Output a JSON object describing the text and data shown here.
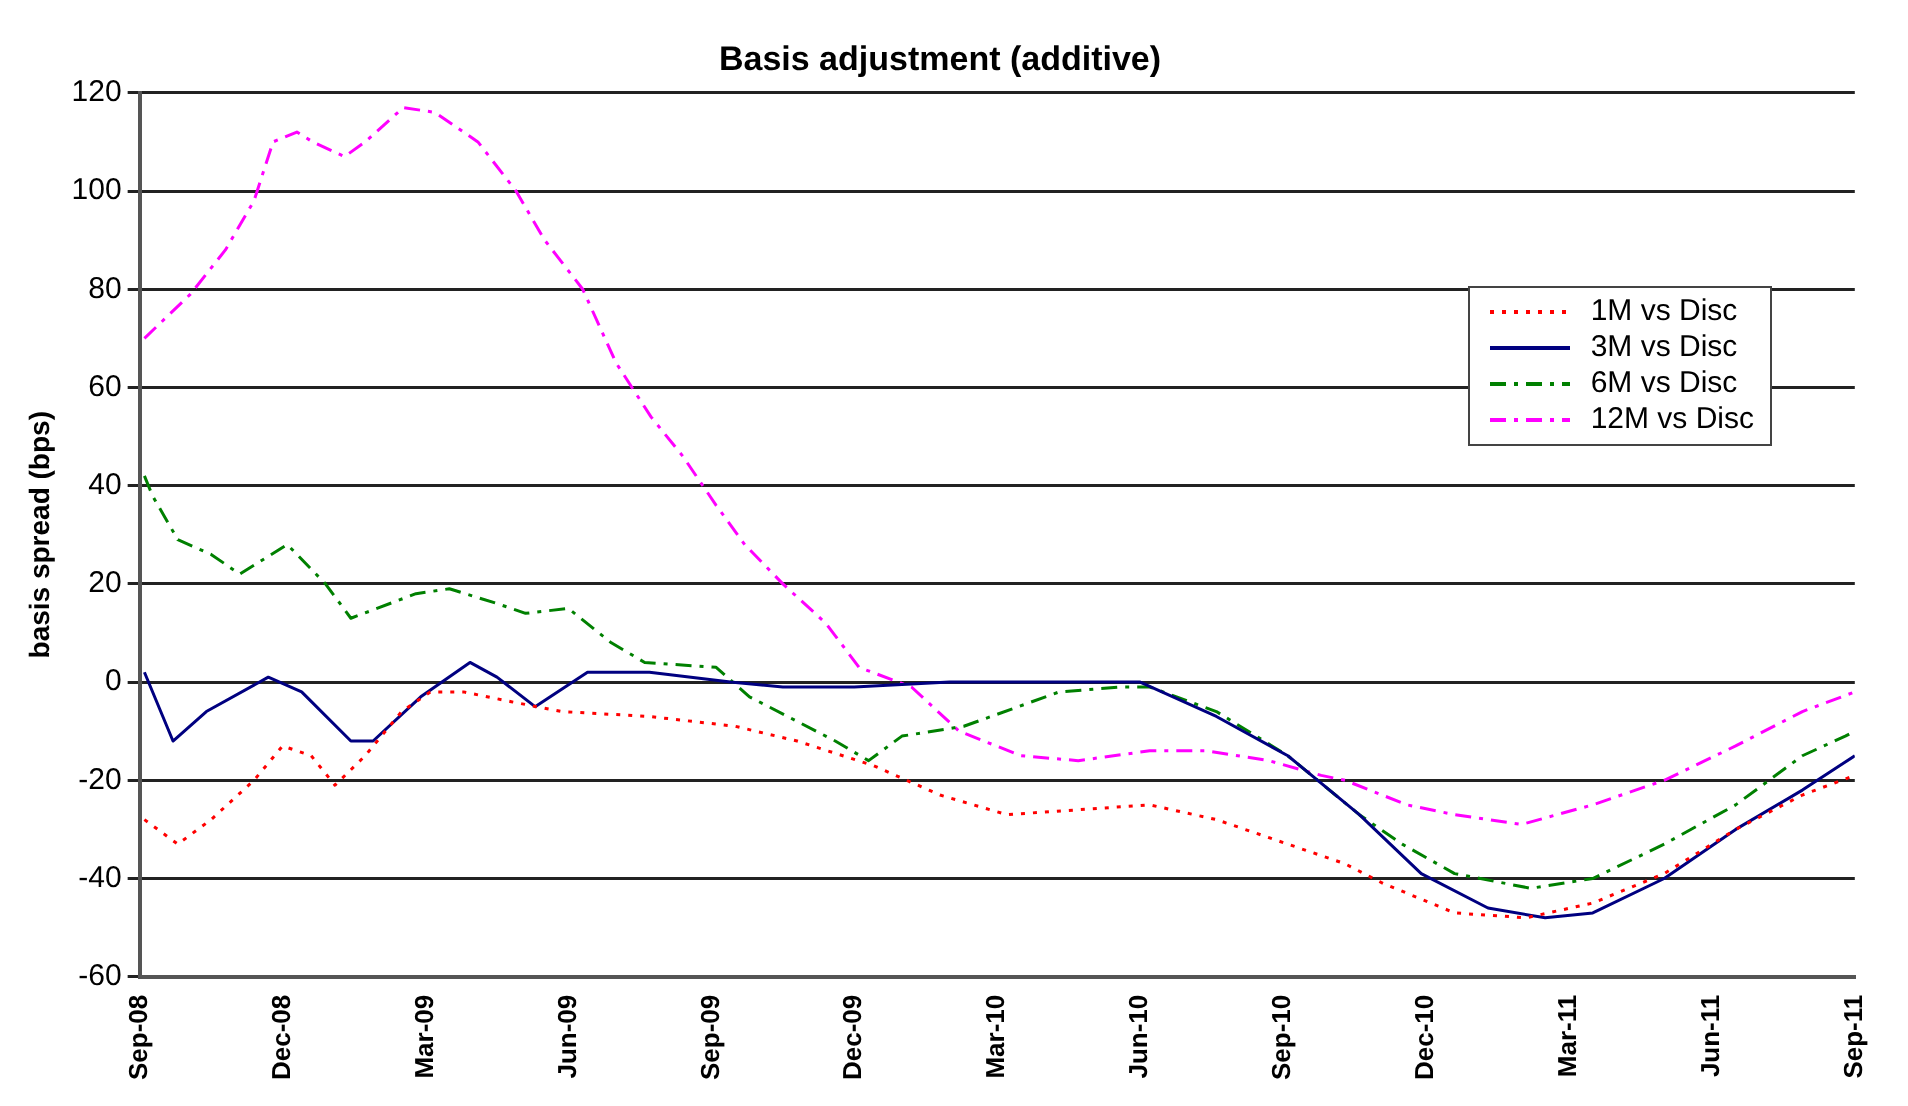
{
  "chart_data": {
    "type": "line",
    "title": "Basis adjustment (additive)",
    "ylabel": "basis spread (bps)",
    "xlim": [
      "2008-09",
      "2011-09"
    ],
    "xticks": [
      {
        "value": "2008-09",
        "label": "Sep-08"
      },
      {
        "value": "2008-12",
        "label": "Dec-08"
      },
      {
        "value": "2009-03",
        "label": "Mar-09"
      },
      {
        "value": "2009-06",
        "label": "Jun-09"
      },
      {
        "value": "2009-09",
        "label": "Sep-09"
      },
      {
        "value": "2009-12",
        "label": "Dec-09"
      },
      {
        "value": "2010-03",
        "label": "Mar-10"
      },
      {
        "value": "2010-06",
        "label": "Jun-10"
      },
      {
        "value": "2010-09",
        "label": "Sep-10"
      },
      {
        "value": "2010-12",
        "label": "Dec-10"
      },
      {
        "value": "2011-03",
        "label": "Mar-11"
      },
      {
        "value": "2011-06",
        "label": "Jun-11"
      },
      {
        "value": "2011-09",
        "label": "Sep-11"
      }
    ],
    "ylim": [
      -60,
      120
    ],
    "yticks": [
      -60,
      -40,
      -20,
      0,
      20,
      40,
      60,
      80,
      100,
      120
    ],
    "grid": "y",
    "legend": "top right",
    "marker": "none",
    "series": [
      {
        "name": "1M vs Disc",
        "color": "#ff0000",
        "line_style": "dotted",
        "x": [
          "2008-09-04",
          "2008-09-25",
          "2008-10-16",
          "2008-11-13",
          "2008-12-01",
          "2008-12-19",
          "2009-01-04",
          "2009-01-23",
          "2009-02-16",
          "2009-03-04",
          "2009-03-25",
          "2009-04-25",
          "2009-05-27",
          "2009-07-22",
          "2009-09-16",
          "2009-10-25",
          "2009-12-13",
          "2010-01-25",
          "2010-03-07",
          "2010-04-22",
          "2010-06-07",
          "2010-07-19",
          "2010-09-04",
          "2010-10-10",
          "2010-11-04",
          "2010-12-19",
          "2011-02-04",
          "2011-03-16",
          "2011-05-01",
          "2011-06-16",
          "2011-07-28",
          "2011-09-01"
        ],
        "values": [
          -28,
          -33,
          -28,
          -20,
          -13,
          -15,
          -21,
          -15,
          -6,
          -2,
          -2,
          -4,
          -6,
          -7,
          -9,
          -12,
          -17,
          -23,
          -27,
          -26,
          -25,
          -28,
          -33,
          -37,
          -41,
          -47,
          -48,
          -45,
          -39,
          -30,
          -23,
          -19
        ]
      },
      {
        "name": "3M vs Disc",
        "color": "#000080",
        "line_style": "solid",
        "x": [
          "2008-09-04",
          "2008-09-22",
          "2008-10-13",
          "2008-11-22",
          "2008-12-13",
          "2009-01-14",
          "2009-01-28",
          "2009-02-28",
          "2009-03-29",
          "2009-04-16",
          "2009-05-10",
          "2009-06-13",
          "2009-07-22",
          "2009-09-13",
          "2009-10-16",
          "2009-12-01",
          "2010-02-01",
          "2010-06-01",
          "2010-07-19",
          "2010-09-04",
          "2010-10-19",
          "2010-11-28",
          "2011-01-10",
          "2011-02-16",
          "2011-03-16",
          "2011-05-01",
          "2011-06-16",
          "2011-07-28",
          "2011-09-01"
        ],
        "values": [
          2,
          -12,
          -6,
          1,
          -2,
          -12,
          -12,
          -3,
          4,
          1,
          -5,
          2,
          2,
          0,
          -1,
          -1,
          0,
          0,
          -7,
          -15,
          -27,
          -39,
          -46,
          -48,
          -47,
          -40,
          -30,
          -22,
          -15
        ]
      },
      {
        "name": "6M vs Disc",
        "color": "#008000",
        "line_style": "dashed",
        "x": [
          "2008-09-04",
          "2008-09-09",
          "2008-09-25",
          "2008-10-16",
          "2008-11-04",
          "2008-12-04",
          "2008-12-28",
          "2009-01-14",
          "2009-02-25",
          "2009-03-16",
          "2009-04-16",
          "2009-05-04",
          "2009-06-01",
          "2009-06-28",
          "2009-07-19",
          "2009-09-04",
          "2009-09-25",
          "2009-11-19",
          "2009-12-10",
          "2010-01-01",
          "2010-02-10",
          "2010-04-10",
          "2010-05-19",
          "2010-06-07",
          "2010-07-19",
          "2010-09-04",
          "2010-10-19",
          "2010-11-16",
          "2010-12-19",
          "2011-02-07",
          "2011-03-16",
          "2011-05-01",
          "2011-06-16",
          "2011-07-28",
          "2011-08-25",
          "2011-09-01"
        ],
        "values": [
          42,
          38,
          29,
          26,
          22,
          28,
          20,
          13,
          18,
          19,
          16,
          14,
          15,
          8,
          4,
          3,
          -3,
          -12,
          -16,
          -11,
          -9,
          -2,
          -1,
          -1,
          -6,
          -15,
          -27,
          -33,
          -39,
          -42,
          -40,
          -33,
          -25,
          -15,
          -11,
          -10
        ]
      },
      {
        "name": "12M vs Disc",
        "color": "#ff00ff",
        "line_style": "dashed",
        "x": [
          "2008-09-04",
          "2008-10-03",
          "2008-10-25",
          "2008-11-13",
          "2008-11-25",
          "2008-12-10",
          "2008-12-20",
          "2009-01-10",
          "2009-01-23",
          "2009-02-17",
          "2009-03-07",
          "2009-04-04",
          "2009-04-28",
          "2009-05-16",
          "2009-06-10",
          "2009-07-01",
          "2009-07-23",
          "2009-08-13",
          "2009-09-04",
          "2009-09-22",
          "2009-10-16",
          "2009-11-13",
          "2009-12-04",
          "2010-01-07",
          "2010-02-07",
          "2010-03-16",
          "2010-04-22",
          "2010-06-07",
          "2010-07-13",
          "2010-08-22",
          "2010-09-25",
          "2010-10-10",
          "2010-11-19",
          "2010-12-19",
          "2011-02-01",
          "2011-03-16",
          "2011-05-01",
          "2011-06-16",
          "2011-07-28",
          "2011-09-01"
        ],
        "values": [
          70,
          79,
          88,
          98,
          110,
          112,
          110,
          107,
          110,
          117,
          116,
          110,
          100,
          90,
          80,
          65,
          54,
          46,
          36,
          28,
          20,
          12,
          3,
          -1,
          -10,
          -15,
          -16,
          -14,
          -14,
          -16,
          -19,
          -20,
          -25,
          -27,
          -29,
          -25,
          -20,
          -13,
          -6,
          -2
        ]
      }
    ]
  }
}
